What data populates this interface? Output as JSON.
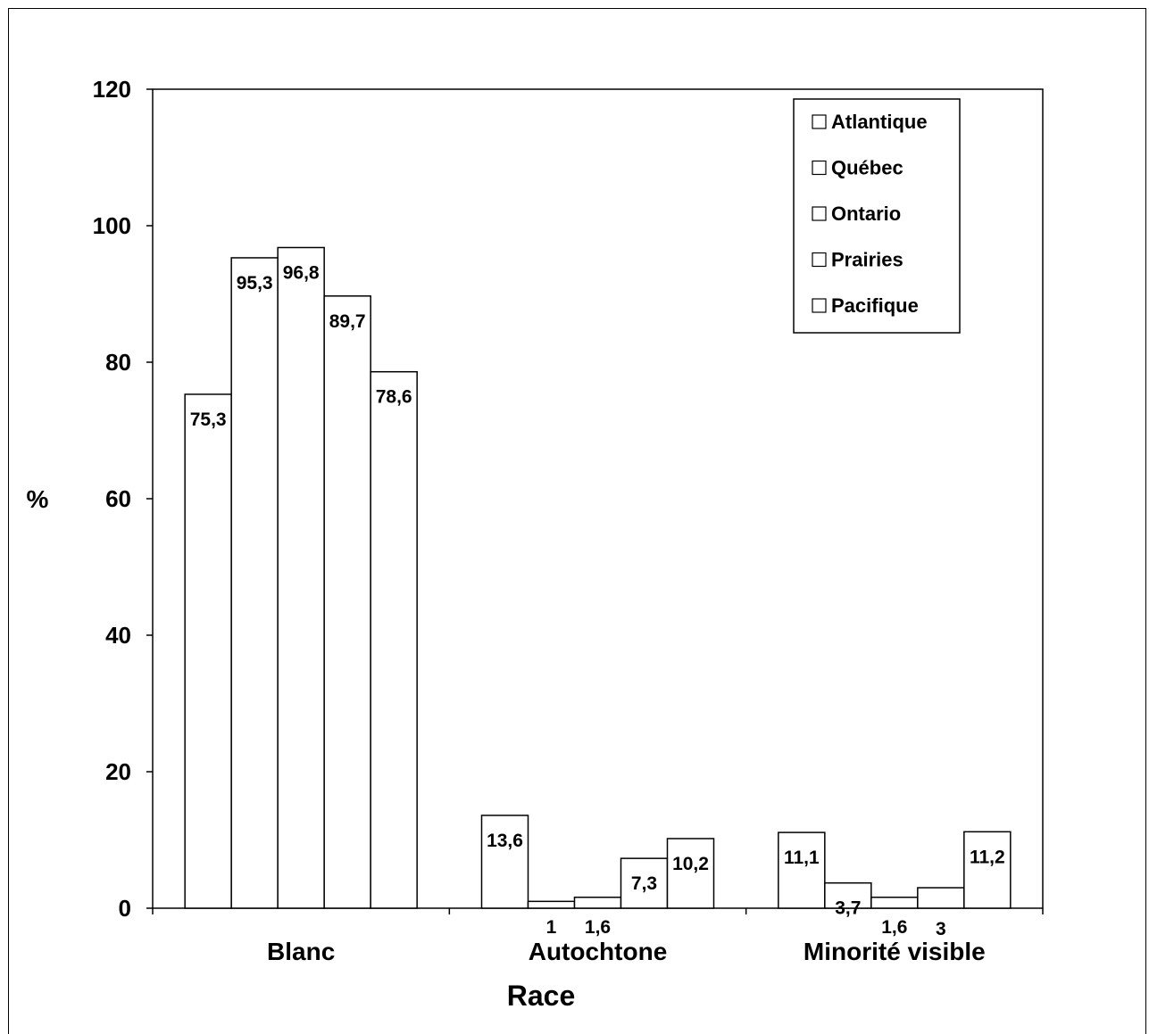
{
  "chart_data": {
    "type": "bar",
    "title": "",
    "xlabel": "Race",
    "ylabel": "%",
    "ylim": [
      0,
      120
    ],
    "yticks": [
      "0",
      "20",
      "40",
      "60",
      "80",
      "100",
      "120"
    ],
    "categories": [
      "Blanc",
      "Autochtone",
      "Minorité visible"
    ],
    "series": [
      {
        "name": "Atlantique",
        "values": [
          75.3,
          13.6,
          11.1
        ],
        "labels": [
          "75,3",
          "13,6",
          "11,1"
        ]
      },
      {
        "name": "Québec",
        "values": [
          95.3,
          1,
          3.7
        ],
        "labels": [
          "95,3",
          "1",
          "3,7"
        ]
      },
      {
        "name": "Ontario",
        "values": [
          96.8,
          1.6,
          1.6
        ],
        "labels": [
          "96,8",
          "1,6",
          "1,6"
        ]
      },
      {
        "name": "Prairies",
        "values": [
          89.7,
          7.3,
          3
        ],
        "labels": [
          "89,7",
          "7,3",
          "3"
        ]
      },
      {
        "name": "Pacifique",
        "values": [
          78.6,
          10.2,
          11.2
        ],
        "labels": [
          "78,6",
          "10,2",
          "11,2"
        ]
      }
    ],
    "legend_position": "top-right",
    "bar_fill": "#ffffff",
    "bar_stroke": "#000000",
    "grid": false
  }
}
